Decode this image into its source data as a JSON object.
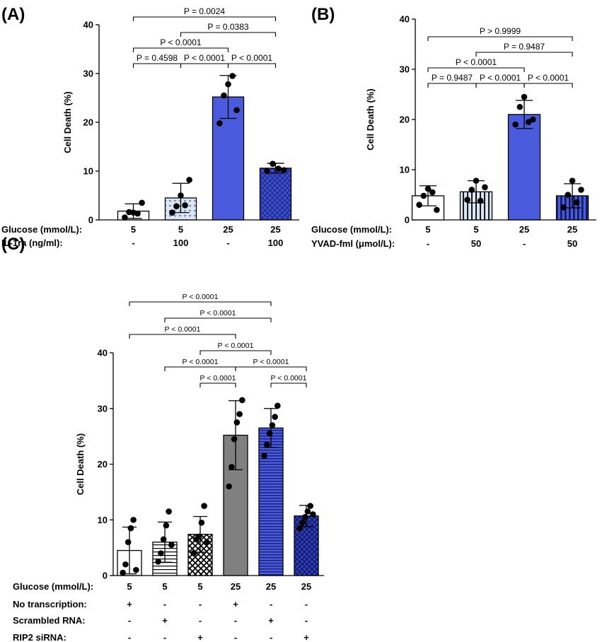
{
  "chart_data": [
    {
      "panel": "(A)",
      "type": "bar",
      "ylabel": "Cell  Death  (%)",
      "ylim": [
        0,
        40
      ],
      "yticks": [
        "0",
        "10",
        "20",
        "30",
        "40"
      ],
      "rows": [
        {
          "label": "Glucose (mmol/L):",
          "values": [
            "5",
            "5",
            "25",
            "25"
          ]
        },
        {
          "label": "IL-1ra (ng/ml):",
          "values": [
            "-",
            "100",
            "-",
            "100"
          ]
        }
      ],
      "bars": [
        {
          "mean": 1.8,
          "sd": 1.5,
          "points": [
            0.5,
            1.6,
            1.5,
            1.3,
            3.5
          ],
          "fill": "#ffffff",
          "pattern": "none"
        },
        {
          "mean": 4.5,
          "sd": 3.0,
          "points": [
            1.5,
            2.8,
            5.0,
            3.0,
            8.2
          ],
          "fill": "#dbe6f4",
          "pattern": "dots"
        },
        {
          "mean": 25.2,
          "sd": 4.4,
          "points": [
            19.8,
            25.5,
            27.8,
            29.5,
            22.5
          ],
          "fill": "#4a5bdc",
          "pattern": "none"
        },
        {
          "mean": 10.6,
          "sd": 1.0,
          "points": [
            10.0,
            11.5,
            10.5,
            10.2
          ],
          "fill": "#3d4fcf",
          "pattern": "diamond"
        }
      ],
      "comparisons": [
        {
          "from": 0,
          "to": 1,
          "level": 1,
          "text": "P = 0.4598"
        },
        {
          "from": 1,
          "to": 2,
          "level": 1,
          "text": "P < 0.0001"
        },
        {
          "from": 2,
          "to": 3,
          "level": 1,
          "text": "P < 0.0001"
        },
        {
          "from": 0,
          "to": 2,
          "level": 2,
          "text": "P < 0.0001"
        },
        {
          "from": 1,
          "to": 3,
          "level": 3,
          "text": "P = 0.0383"
        },
        {
          "from": 0,
          "to": 3,
          "level": 4,
          "text": "P = 0.0024"
        }
      ]
    },
    {
      "panel": "(B)",
      "type": "bar",
      "ylabel": "Cell  Death  (%)",
      "ylim": [
        0,
        40
      ],
      "yticks": [
        "0",
        "10",
        "20",
        "30",
        "40"
      ],
      "rows": [
        {
          "label": "Glucose (mmol/L):",
          "values": [
            "5",
            "5",
            "25",
            "25"
          ]
        },
        {
          "label": "YVAD-fml (μmol/L):",
          "values": [
            "-",
            "50",
            "-",
            "50"
          ]
        }
      ],
      "bars": [
        {
          "mean": 4.8,
          "sd": 2.0,
          "points": [
            3.0,
            4.8,
            6.2,
            5.5,
            2.0
          ],
          "fill": "#ffffff",
          "pattern": "none"
        },
        {
          "mean": 5.6,
          "sd": 2.2,
          "points": [
            4.0,
            6.0,
            7.8,
            3.8,
            6.5
          ],
          "fill": "#dbe6f4",
          "pattern": "vstripes"
        },
        {
          "mean": 21.0,
          "sd": 2.8,
          "points": [
            19.0,
            22.5,
            24.5,
            19.5,
            20.0
          ],
          "fill": "#4a5bdc",
          "pattern": "none"
        },
        {
          "mean": 4.8,
          "sd": 2.4,
          "points": [
            2.5,
            5.0,
            7.8,
            3.5,
            6.0
          ],
          "fill": "#2f3fbf",
          "pattern": "vstripes"
        }
      ],
      "comparisons": [
        {
          "from": 0,
          "to": 1,
          "level": 1,
          "text": "P = 0.9487"
        },
        {
          "from": 1,
          "to": 2,
          "level": 1,
          "text": "P < 0.0001"
        },
        {
          "from": 2,
          "to": 3,
          "level": 1,
          "text": "P < 0.0001"
        },
        {
          "from": 0,
          "to": 2,
          "level": 2,
          "text": "P < 0.0001"
        },
        {
          "from": 1,
          "to": 3,
          "level": 3,
          "text": "P = 0.9487"
        },
        {
          "from": 0,
          "to": 3,
          "level": 4,
          "text": "P > 0.9999"
        }
      ]
    },
    {
      "panel": "(C)",
      "type": "bar",
      "ylabel": "Cell  Death  (%)",
      "ylim": [
        0,
        40
      ],
      "yticks": [
        "0",
        "10",
        "20",
        "30",
        "40"
      ],
      "rows": [
        {
          "label": "Glucose (mmol/L):",
          "values": [
            "5",
            "5",
            "5",
            "25",
            "25",
            "25"
          ]
        },
        {
          "label": "No transcription:",
          "values": [
            "+",
            "-",
            "-",
            "+",
            "-",
            "-"
          ]
        },
        {
          "label": "Scrambled RNA:",
          "values": [
            "-",
            "+",
            "-",
            "-",
            "+",
            "-"
          ]
        },
        {
          "label": "RIP2 siRNA:",
          "values": [
            "-",
            "-",
            "+",
            "-",
            "-",
            "+"
          ]
        }
      ],
      "bars": [
        {
          "mean": 4.5,
          "sd": 4.2,
          "points": [
            0.5,
            2.0,
            6.0,
            8.5,
            10.0,
            1.0
          ],
          "fill": "#ffffff",
          "pattern": "none"
        },
        {
          "mean": 6.0,
          "sd": 3.6,
          "points": [
            2.5,
            4.0,
            6.5,
            9.0,
            11.5,
            5.5
          ],
          "fill": "#ffffff",
          "pattern": "hstripes"
        },
        {
          "mean": 7.4,
          "sd": 3.2,
          "points": [
            4.0,
            6.5,
            7.0,
            9.5,
            12.5,
            6.0
          ],
          "fill": "#ffffff",
          "pattern": "crosshatch"
        },
        {
          "mean": 25.2,
          "sd": 6.2,
          "points": [
            16.0,
            19.5,
            24.5,
            27.5,
            29.0,
            31.5
          ],
          "fill": "#808080",
          "pattern": "none"
        },
        {
          "mean": 26.5,
          "sd": 3.5,
          "points": [
            21.5,
            23.5,
            25.5,
            27.0,
            28.5,
            30.5
          ],
          "fill": "#3a4bd6",
          "pattern": "hstripes"
        },
        {
          "mean": 10.7,
          "sd": 1.9,
          "points": [
            8.5,
            9.5,
            10.5,
            11.5,
            12.5,
            11.0
          ],
          "fill": "#2e3fb8",
          "pattern": "crosshatch"
        }
      ],
      "comparisons": [
        {
          "from": 2,
          "to": 3,
          "level": 1,
          "text": "P < 0.0001"
        },
        {
          "from": 4,
          "to": 5,
          "level": 1,
          "text": "P < 0.0001"
        },
        {
          "from": 1,
          "to": 3,
          "level": 2,
          "text": "P < 0.0001"
        },
        {
          "from": 3,
          "to": 5,
          "level": 2,
          "text": "P < 0.0001"
        },
        {
          "from": 2,
          "to": 4,
          "level": 3,
          "text": "P < 0.0001"
        },
        {
          "from": 0,
          "to": 3,
          "level": 4,
          "text": "P < 0.0001"
        },
        {
          "from": 1,
          "to": 4,
          "level": 5,
          "text": "P < 0.0001"
        },
        {
          "from": 0,
          "to": 4,
          "level": 6,
          "text": "P < 0.0001"
        }
      ]
    }
  ]
}
